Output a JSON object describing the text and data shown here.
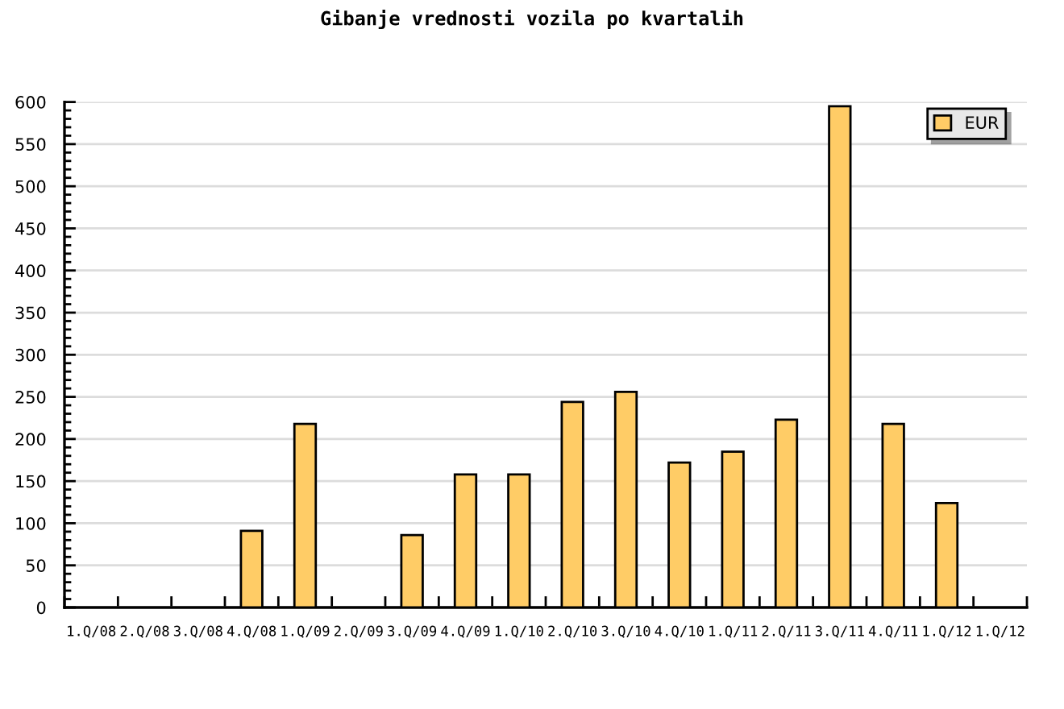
{
  "chart_data": {
    "type": "bar",
    "title": "Gibanje vrednosti vozila po kvartalih",
    "categories": [
      "1.Q/08",
      "2.Q/08",
      "3.Q/08",
      "4.Q/08",
      "1.Q/09",
      "2.Q/09",
      "3.Q/09",
      "4.Q/09",
      "1.Q/10",
      "2.Q/10",
      "3.Q/10",
      "4.Q/10",
      "1.Q/11",
      "2.Q/11",
      "3.Q/11",
      "4.Q/11",
      "1.Q/12",
      "1.Q/12"
    ],
    "series": [
      {
        "name": "EUR",
        "color": "#ffcc66",
        "values": [
          null,
          null,
          null,
          91,
          218,
          null,
          86,
          158,
          158,
          244,
          256,
          172,
          185,
          223,
          595,
          218,
          124,
          null
        ]
      }
    ],
    "ylim": [
      0,
      600
    ],
    "yticks": [
      0,
      {
        "value": 10,
        "label": null
      },
      {
        "value": 20,
        "label": null
      },
      {
        "value": 30,
        "label": null
      },
      {
        "value": 40,
        "label": null
      },
      50,
      {
        "value": 60,
        "label": null
      },
      {
        "value": 70,
        "label": null
      },
      {
        "value": 80,
        "label": null
      },
      {
        "value": 90,
        "label": null
      },
      100,
      {
        "value": 110,
        "label": null
      },
      {
        "value": 120,
        "label": null
      },
      {
        "value": 130,
        "label": null
      },
      {
        "value": 140,
        "label": null
      },
      150,
      {
        "value": 160,
        "label": null
      },
      {
        "value": 170,
        "label": null
      },
      {
        "value": 180,
        "label": null
      },
      {
        "value": 190,
        "label": null
      },
      200,
      {
        "value": 210,
        "label": null
      },
      {
        "value": 220,
        "label": null
      },
      {
        "value": 230,
        "label": null
      },
      {
        "value": 240,
        "label": null
      },
      250,
      {
        "value": 260,
        "label": null
      },
      {
        "value": 270,
        "label": null
      },
      {
        "value": 280,
        "label": null
      },
      {
        "value": 290,
        "label": null
      },
      300,
      {
        "value": 310,
        "label": null
      },
      {
        "value": 320,
        "label": null
      },
      {
        "value": 330,
        "label": null
      },
      {
        "value": 340,
        "label": null
      },
      350,
      {
        "value": 360,
        "label": null
      },
      {
        "value": 370,
        "label": null
      },
      {
        "value": 380,
        "label": null
      },
      {
        "value": 390,
        "label": null
      },
      400,
      {
        "value": 410,
        "label": null
      },
      {
        "value": 420,
        "label": null
      },
      {
        "value": 430,
        "label": null
      },
      {
        "value": 440,
        "label": null
      },
      450,
      {
        "value": 460,
        "label": null
      },
      {
        "value": 470,
        "label": null
      },
      {
        "value": 480,
        "label": null
      },
      {
        "value": 490,
        "label": null
      },
      500,
      {
        "value": 510,
        "label": null
      },
      {
        "value": 520,
        "label": null
      },
      {
        "value": 530,
        "label": null
      },
      {
        "value": 540,
        "label": null
      },
      550,
      {
        "value": 560,
        "label": null
      },
      {
        "value": 570,
        "label": null
      },
      {
        "value": 580,
        "label": null
      },
      {
        "value": 590,
        "label": null
      },
      600
    ],
    "grid": "y",
    "legend": "top right"
  }
}
